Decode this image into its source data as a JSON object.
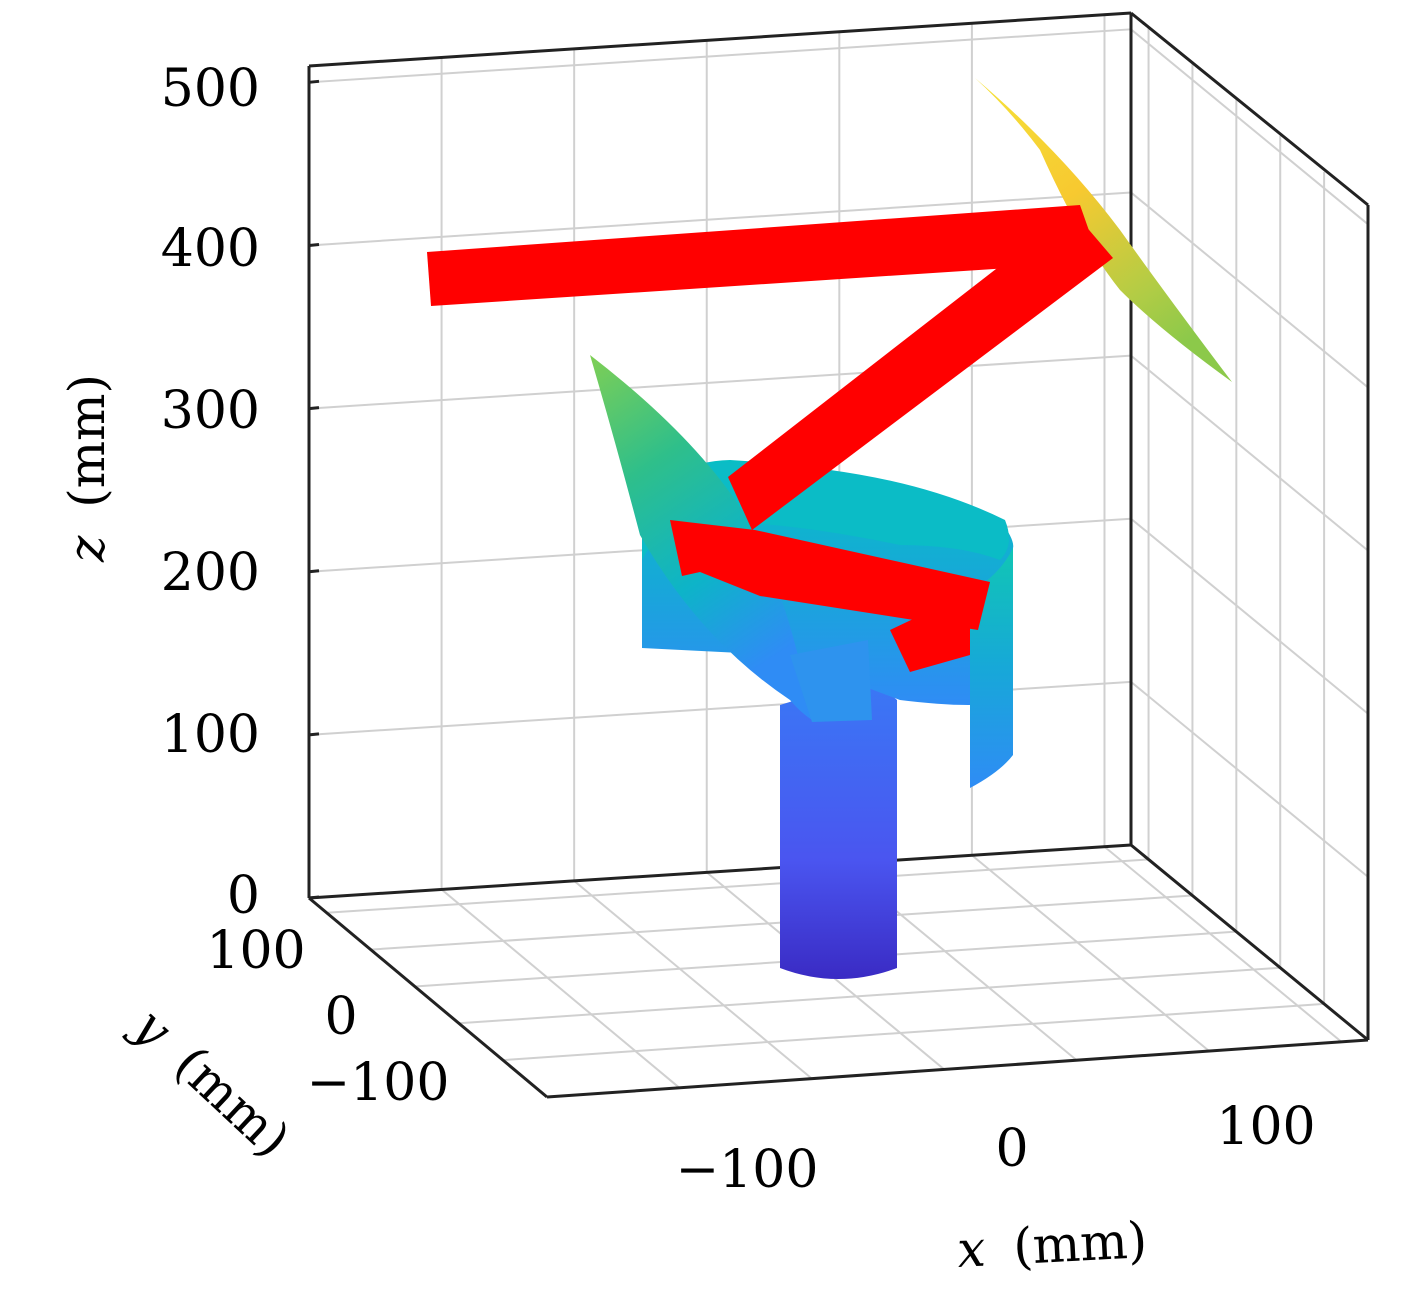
{
  "chart_data": {
    "type": "surface3d",
    "axes": {
      "x": {
        "label_var": "x",
        "label_unit": "(mm)",
        "ticks": [
          -100,
          0,
          100
        ],
        "tick_labels": [
          "−100",
          "0",
          "100"
        ]
      },
      "y": {
        "label_var": "y",
        "label_unit": "(mm)",
        "ticks": [
          -100,
          0,
          100
        ],
        "tick_labels": [
          "−100",
          "0",
          "100"
        ]
      },
      "z": {
        "label_var": "z",
        "label_unit": "(mm)",
        "ticks": [
          0,
          100,
          200,
          300,
          400,
          500
        ],
        "tick_labels": [
          "0",
          "100",
          "200",
          "300",
          "400",
          "500"
        ]
      }
    },
    "grid": true,
    "box": true,
    "colormap": "parula",
    "colors": {
      "links": "#ff0000",
      "frame": "#222222",
      "grid": "#d0d0d0"
    },
    "objects": [
      {
        "name": "base-column",
        "kind": "cylinder",
        "color_range": [
          "#3a2bc4",
          "#3a78f5"
        ]
      },
      {
        "name": "rotary-band",
        "kind": "cylindrical-surface",
        "color_range": [
          "#2f8cf5",
          "#07bfc4"
        ]
      },
      {
        "name": "lower-wing",
        "kind": "surface",
        "color_range": [
          "#2f8cf5",
          "#7fcf54"
        ]
      },
      {
        "name": "upper-wing",
        "kind": "surface",
        "color_range": [
          "#8cc94a",
          "#f7c930"
        ]
      },
      {
        "name": "link-horizontal-upper",
        "kind": "bar",
        "color": "#ff0000"
      },
      {
        "name": "link-diagonal",
        "kind": "bar",
        "color": "#ff0000"
      },
      {
        "name": "link-lower",
        "kind": "bar",
        "color": "#ff0000"
      },
      {
        "name": "link-lower-end",
        "kind": "bar",
        "color": "#ff0000"
      }
    ]
  }
}
